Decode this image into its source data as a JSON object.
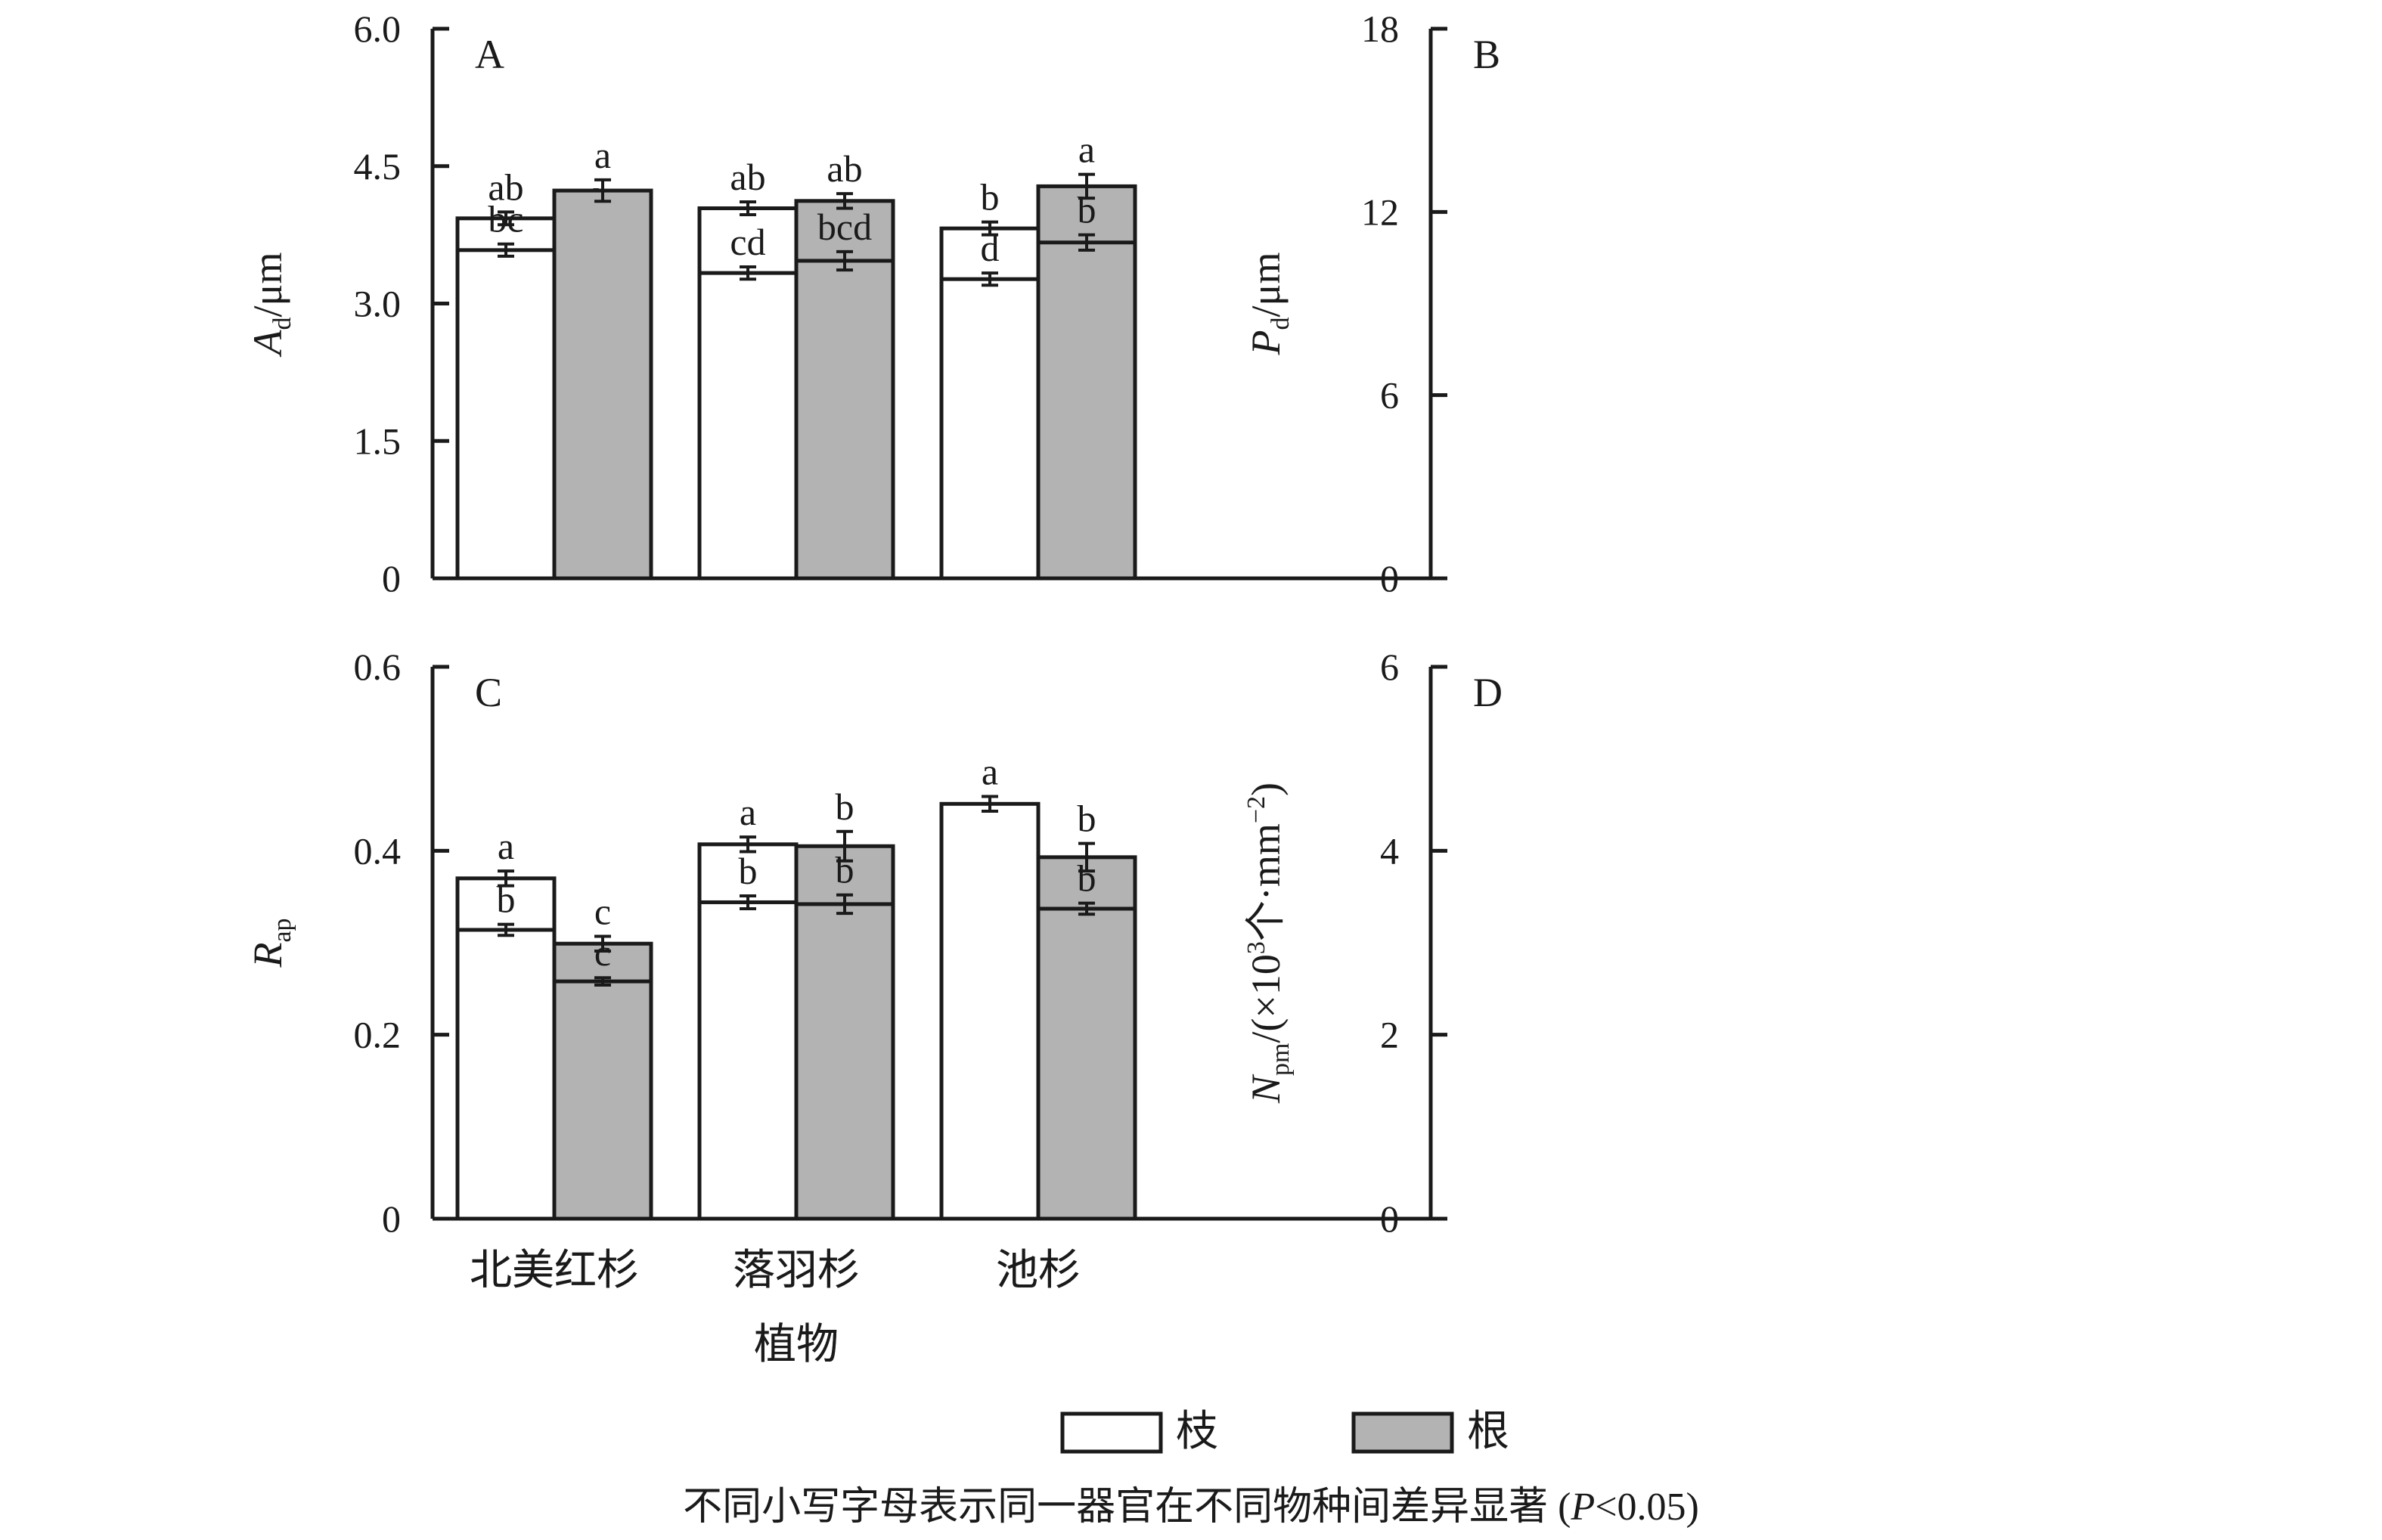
{
  "legend": {
    "items": [
      {
        "label": "枝",
        "color": "#ffffff"
      },
      {
        "label": "根",
        "color": "#b3b3b3"
      }
    ]
  },
  "footnote": {
    "text": "不同小写字母表示同一器官在不同物种间差异显著 (",
    "p_symbol": "P",
    "p_value": "<0.05)"
  },
  "chart_data": [
    {
      "type": "bar",
      "panel": "A",
      "ylabel": {
        "symbol": "A",
        "sub": "d",
        "unit": "/μm"
      },
      "ylim": [
        0,
        6.0
      ],
      "yticks": [
        "0",
        "1.5",
        "3.0",
        "4.5",
        "6.0"
      ],
      "categories": [
        "北美红杉",
        "落羽杉",
        "池杉"
      ],
      "xlabel": "",
      "series": [
        {
          "name": "枝",
          "values": [
            3.93,
            4.04,
            3.82
          ],
          "errors": [
            0.07,
            0.07,
            0.07
          ],
          "letters": [
            "ab",
            "ab",
            "b"
          ]
        },
        {
          "name": "根",
          "values": [
            3.74,
            4.12,
            4.28
          ],
          "errors": [
            0.1,
            0.08,
            0.13
          ],
          "letters": [
            "b",
            "ab",
            "a"
          ]
        }
      ]
    },
    {
      "type": "bar",
      "panel": "B",
      "ylabel": {
        "symbol": "P",
        "sub": "d",
        "unit": "/μm"
      },
      "ylim": [
        0,
        18
      ],
      "yticks": [
        "0",
        "6",
        "12",
        "18"
      ],
      "categories": [
        "北美红杉",
        "落羽杉",
        "池杉"
      ],
      "xlabel": "",
      "series": [
        {
          "name": "枝",
          "values": [
            10.75,
            10.0,
            9.8
          ],
          "errors": [
            0.2,
            0.2,
            0.2
          ],
          "letters": [
            "bc",
            "cd",
            "d"
          ]
        },
        {
          "name": "根",
          "values": [
            12.7,
            10.4,
            11.0
          ],
          "errors": [
            0.35,
            0.3,
            0.25
          ],
          "letters": [
            "a",
            "bcd",
            "b"
          ]
        }
      ]
    },
    {
      "type": "bar",
      "panel": "C",
      "ylabel": {
        "symbol": "R",
        "sub": "ap",
        "unit": ""
      },
      "ylim": [
        0,
        0.6
      ],
      "yticks": [
        "0",
        "0.2",
        "0.4",
        "0.6"
      ],
      "categories": [
        "北美红杉",
        "落羽杉",
        "池杉"
      ],
      "xlabel": "植物",
      "series": [
        {
          "name": "枝",
          "values": [
            0.37,
            0.407,
            0.394
          ],
          "errors": [
            0.008,
            0.008,
            0.01
          ],
          "letters": [
            "a",
            "a",
            "a"
          ]
        },
        {
          "name": "根",
          "values": [
            0.299,
            0.405,
            0.393
          ],
          "errors": [
            0.008,
            0.016,
            0.015
          ],
          "letters": [
            "c",
            "b",
            "b"
          ]
        }
      ]
    },
    {
      "type": "bar",
      "panel": "D",
      "ylabel": {
        "symbol": "N",
        "sub": "pm",
        "unit_pre": "/(×10",
        "sup1": "3",
        "unit_mid": "个·mm",
        "sup2": "−2",
        "unit_post": ")"
      },
      "ylim": [
        0,
        6
      ],
      "yticks": [
        "0",
        "2",
        "4",
        "6"
      ],
      "categories": [
        "北美红杉",
        "落羽杉",
        "池杉"
      ],
      "xlabel": "植物",
      "series": [
        {
          "name": "枝",
          "values": [
            3.14,
            3.44,
            4.51
          ],
          "errors": [
            0.06,
            0.07,
            0.08
          ],
          "letters": [
            "b",
            "b",
            "a"
          ]
        },
        {
          "name": "根",
          "values": [
            2.58,
            3.42,
            3.37
          ],
          "errors": [
            0.04,
            0.1,
            0.06
          ],
          "letters": [
            "c",
            "b",
            "b"
          ]
        }
      ]
    }
  ]
}
